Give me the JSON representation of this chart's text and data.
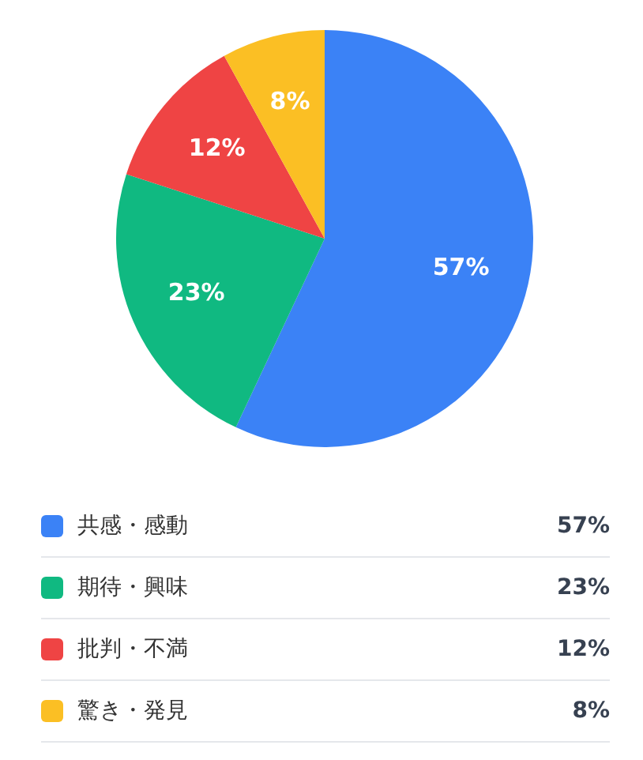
{
  "chart_data": {
    "type": "pie",
    "categories": [
      "共感・感動",
      "期待・興味",
      "批判・不満",
      "驚き・発見"
    ],
    "values": [
      57,
      23,
      12,
      8
    ],
    "value_labels": [
      "57%",
      "23%",
      "12%",
      "8%"
    ],
    "colors": [
      "#3b82f6",
      "#10b981",
      "#ef4444",
      "#fbbf24"
    ],
    "legend": "bottom"
  }
}
